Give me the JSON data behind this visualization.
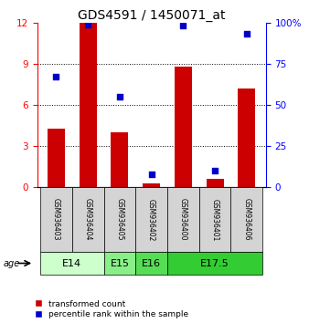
{
  "title": "GDS4591 / 1450071_at",
  "samples": [
    "GSM936403",
    "GSM936404",
    "GSM936405",
    "GSM936402",
    "GSM936400",
    "GSM936401",
    "GSM936406"
  ],
  "transformed_count": [
    4.3,
    12.0,
    4.0,
    0.3,
    8.8,
    0.6,
    7.2
  ],
  "percentile_rank": [
    67,
    99,
    55,
    8,
    98,
    10,
    93
  ],
  "ylim_left": [
    0,
    12
  ],
  "ylim_right": [
    0,
    100
  ],
  "yticks_left": [
    0,
    3,
    6,
    9,
    12
  ],
  "yticks_right": [
    0,
    25,
    50,
    75,
    100
  ],
  "ytick_labels_right": [
    "0",
    "25",
    "50",
    "75",
    "100%"
  ],
  "bar_color": "#cc0000",
  "dot_color": "#0000cc",
  "groups": [
    {
      "label": "E14",
      "start": 0,
      "end": 1,
      "color": "#ccffcc"
    },
    {
      "label": "E15",
      "start": 2,
      "end": 2,
      "color": "#88ee88"
    },
    {
      "label": "E16",
      "start": 3,
      "end": 3,
      "color": "#55dd55"
    },
    {
      "label": "E17.5",
      "start": 4,
      "end": 6,
      "color": "#33cc33"
    }
  ],
  "age_label": "age",
  "legend_bar_label": "transformed count",
  "legend_dot_label": "percentile rank within the sample",
  "bar_width": 0.55,
  "tick_fontsize": 7.5,
  "title_fontsize": 10,
  "label_fontsize": 8,
  "group_label_fontsize": 8,
  "sample_fontsize": 5.5
}
